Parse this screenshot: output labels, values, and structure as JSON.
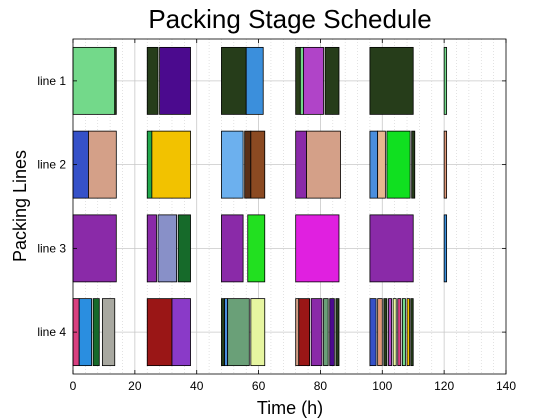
{
  "chart_data": {
    "type": "gantt",
    "title": "Packing Stage Schedule",
    "xlabel": "Time (h)",
    "ylabel": "Packing Lines",
    "xlim": [
      0,
      140
    ],
    "xticks": [
      0,
      20,
      40,
      60,
      80,
      100,
      120,
      140
    ],
    "grid": true,
    "lines": [
      "line 1",
      "line 2",
      "line 3",
      "line 4"
    ],
    "tasks": [
      {
        "line": "line 1",
        "start": 0,
        "end": 13.5,
        "color": "#73d98a"
      },
      {
        "line": "line 1",
        "start": 13.5,
        "end": 14,
        "color": "#2a3e1a"
      },
      {
        "line": "line 1",
        "start": 24,
        "end": 27.5,
        "color": "#263d1a"
      },
      {
        "line": "line 1",
        "start": 28,
        "end": 38,
        "color": "#4b0a8e"
      },
      {
        "line": "line 1",
        "start": 48,
        "end": 56,
        "color": "#263d1a"
      },
      {
        "line": "line 1",
        "start": 56,
        "end": 61.5,
        "color": "#3b8fdc"
      },
      {
        "line": "line 1",
        "start": 72,
        "end": 73.5,
        "color": "#2a3e1a"
      },
      {
        "line": "line 1",
        "start": 73.5,
        "end": 74.5,
        "color": "#73d98a"
      },
      {
        "line": "line 1",
        "start": 74.5,
        "end": 81,
        "color": "#b044c8"
      },
      {
        "line": "line 1",
        "start": 81.5,
        "end": 86,
        "color": "#263d1a"
      },
      {
        "line": "line 1",
        "start": 96,
        "end": 110,
        "color": "#263d1a"
      },
      {
        "line": "line 1",
        "start": 120,
        "end": 120.8,
        "color": "#73d98a"
      },
      {
        "line": "line 2",
        "start": 0,
        "end": 5,
        "color": "#3551c8"
      },
      {
        "line": "line 2",
        "start": 5,
        "end": 14,
        "color": "#d4a088"
      },
      {
        "line": "line 2",
        "start": 24,
        "end": 25.5,
        "color": "#22a84c"
      },
      {
        "line": "line 2",
        "start": 25.5,
        "end": 38,
        "color": "#f2c200"
      },
      {
        "line": "line 2",
        "start": 48,
        "end": 55,
        "color": "#6cb0ee"
      },
      {
        "line": "line 2",
        "start": 55.5,
        "end": 57.5,
        "color": "#5a3018"
      },
      {
        "line": "line 2",
        "start": 57.5,
        "end": 62,
        "color": "#8b4a22"
      },
      {
        "line": "line 2",
        "start": 72,
        "end": 75.5,
        "color": "#8a2aa8"
      },
      {
        "line": "line 2",
        "start": 75.5,
        "end": 86.5,
        "color": "#d4a088"
      },
      {
        "line": "line 2",
        "start": 96,
        "end": 98.5,
        "color": "#4a8ede"
      },
      {
        "line": "line 2",
        "start": 98.5,
        "end": 101,
        "color": "#e8b890"
      },
      {
        "line": "line 2",
        "start": 101.5,
        "end": 109,
        "color": "#10e020"
      },
      {
        "line": "line 2",
        "start": 109.5,
        "end": 110.5,
        "color": "#263d1a"
      },
      {
        "line": "line 2",
        "start": 120,
        "end": 120.8,
        "color": "#e09878"
      },
      {
        "line": "line 3",
        "start": 0,
        "end": 14,
        "color": "#8a2aa8"
      },
      {
        "line": "line 3",
        "start": 24,
        "end": 27,
        "color": "#8a2aa8"
      },
      {
        "line": "line 3",
        "start": 27.5,
        "end": 33.5,
        "color": "#8890c8"
      },
      {
        "line": "line 3",
        "start": 34,
        "end": 38,
        "color": "#166a2a"
      },
      {
        "line": "line 3",
        "start": 48,
        "end": 55,
        "color": "#8a2aa8"
      },
      {
        "line": "line 3",
        "start": 56.5,
        "end": 62,
        "color": "#22e020"
      },
      {
        "line": "line 3",
        "start": 72,
        "end": 86,
        "color": "#e020e0"
      },
      {
        "line": "line 3",
        "start": 96,
        "end": 110,
        "color": "#8a2aa8"
      },
      {
        "line": "line 3",
        "start": 120,
        "end": 120.8,
        "color": "#3b8fdc"
      },
      {
        "line": "line 4",
        "start": 0,
        "end": 2,
        "color": "#d84080"
      },
      {
        "line": "line 4",
        "start": 2,
        "end": 6,
        "color": "#2a8ee0"
      },
      {
        "line": "line 4",
        "start": 6.5,
        "end": 8.5,
        "color": "#166a2a"
      },
      {
        "line": "line 4",
        "start": 9.5,
        "end": 13.5,
        "color": "#a8a8a0"
      },
      {
        "line": "line 4",
        "start": 24,
        "end": 32,
        "color": "#9a1616"
      },
      {
        "line": "line 4",
        "start": 32,
        "end": 38,
        "color": "#8a3ac8"
      },
      {
        "line": "line 4",
        "start": 48,
        "end": 49,
        "color": "#263d1a"
      },
      {
        "line": "line 4",
        "start": 49,
        "end": 50,
        "color": "#4a8ede"
      },
      {
        "line": "line 4",
        "start": 50,
        "end": 57,
        "color": "#6aa078"
      },
      {
        "line": "line 4",
        "start": 57.5,
        "end": 62,
        "color": "#e6f5a0"
      },
      {
        "line": "line 4",
        "start": 72,
        "end": 73,
        "color": "#d4a088"
      },
      {
        "line": "line 4",
        "start": 73,
        "end": 76.5,
        "color": "#9a1616"
      },
      {
        "line": "line 4",
        "start": 77,
        "end": 80.5,
        "color": "#8a2aa8"
      },
      {
        "line": "line 4",
        "start": 81,
        "end": 82.5,
        "color": "#6aa078"
      },
      {
        "line": "line 4",
        "start": 83,
        "end": 84.5,
        "color": "#4b0a8e"
      },
      {
        "line": "line 4",
        "start": 85,
        "end": 86,
        "color": "#263d1a"
      },
      {
        "line": "line 4",
        "start": 96,
        "end": 98,
        "color": "#3551c8"
      },
      {
        "line": "line 4",
        "start": 98.5,
        "end": 100,
        "color": "#e09878"
      },
      {
        "line": "line 4",
        "start": 100.5,
        "end": 101.5,
        "color": "#263d1a"
      },
      {
        "line": "line 4",
        "start": 102,
        "end": 103,
        "color": "#b044c8"
      },
      {
        "line": "line 4",
        "start": 103.5,
        "end": 104.5,
        "color": "#e6f5a0"
      },
      {
        "line": "line 4",
        "start": 105,
        "end": 106,
        "color": "#d84080"
      },
      {
        "line": "line 4",
        "start": 106.5,
        "end": 107.5,
        "color": "#73d98a"
      },
      {
        "line": "line 4",
        "start": 108,
        "end": 108.8,
        "color": "#f2c200"
      },
      {
        "line": "line 4",
        "start": 109.2,
        "end": 110,
        "color": "#263d1a"
      }
    ]
  }
}
